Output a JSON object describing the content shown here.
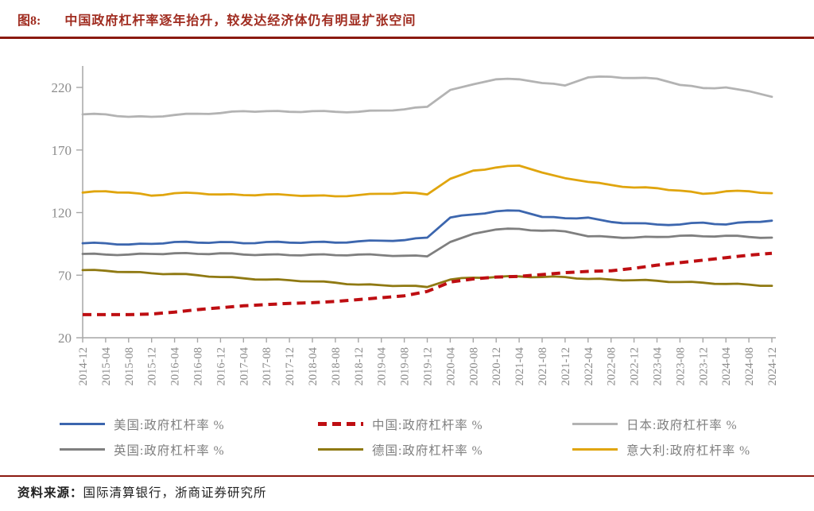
{
  "figure": {
    "tag": "图8:",
    "title": "中国政府杠杆率逐年抬升，较发达经济体仍有明显扩张空间"
  },
  "source": {
    "label": "资料来源：",
    "text": "国际清算银行，浙商证券研究所"
  },
  "colors": {
    "title_red": "#A02C20",
    "rule_red": "#8B1A10",
    "axis_gray": "#A6A6A6",
    "tick_text_gray": "#8C8C8C",
    "legend_text_gray": "#7F7F7F"
  },
  "chart_data": {
    "type": "line",
    "title": "",
    "xlabel": "",
    "ylabel": "",
    "ylim": [
      20,
      220
    ],
    "yticks": [
      20,
      70,
      120,
      170,
      220
    ],
    "grid": false,
    "legend_position": "bottom",
    "x": [
      "2014-12",
      "2015-04",
      "2015-08",
      "2015-12",
      "2016-04",
      "2016-08",
      "2016-12",
      "2017-04",
      "2017-08",
      "2017-12",
      "2018-04",
      "2018-08",
      "2018-12",
      "2019-04",
      "2019-08",
      "2019-12",
      "2020-04",
      "2020-08",
      "2020-12",
      "2021-04",
      "2021-08",
      "2021-12",
      "2022-04",
      "2022-08",
      "2022-12",
      "2023-04",
      "2023-08",
      "2023-12",
      "2024-04",
      "2024-08",
      "2024-12"
    ],
    "series": [
      {
        "key": "us",
        "name": "美国:政府杠杆率 %",
        "color": "#3C66AE",
        "dash": false,
        "values": [
          95.5,
          95.5,
          94.5,
          95,
          96.5,
          96,
          96.5,
          95.5,
          96.5,
          96,
          96.5,
          96,
          97,
          97.5,
          98,
          100,
          116,
          118.5,
          121,
          121.5,
          116.5,
          115.5,
          116,
          112.5,
          111.5,
          110.5,
          110.5,
          112,
          110.5,
          112.5,
          113.5
        ]
      },
      {
        "key": "china",
        "name": "中国:政府杠杆率 %",
        "color": "#BE0E12",
        "dash": true,
        "values": [
          38.5,
          38.5,
          38.5,
          39,
          40.5,
          42.5,
          44,
          45.5,
          46.5,
          47.5,
          48,
          49,
          50.5,
          52,
          53.5,
          57,
          64.5,
          67,
          68.5,
          69,
          70.5,
          72,
          73,
          73.5,
          75.5,
          78,
          80,
          82,
          84,
          86,
          87.5
        ]
      },
      {
        "key": "japan",
        "name": "日本:政府杠杆率 %",
        "color": "#B3B3B3",
        "dash": false,
        "values": [
          198.5,
          198.5,
          196.5,
          196.5,
          198,
          199,
          199.5,
          201,
          201,
          200.5,
          201,
          200.5,
          200.5,
          201.5,
          202.5,
          204.5,
          218,
          222.5,
          226.5,
          226.5,
          223.5,
          221.5,
          228,
          228.5,
          227.5,
          227,
          222,
          219.5,
          220,
          217,
          212.5
        ]
      },
      {
        "key": "uk",
        "name": "英国:政府杠杆率 %",
        "color": "#7F7F7F",
        "dash": false,
        "values": [
          87,
          86.5,
          86.5,
          87,
          87.5,
          87,
          87.5,
          86.5,
          86.5,
          86,
          86.5,
          86,
          86.5,
          86,
          85.5,
          85,
          96.5,
          103,
          106.5,
          107,
          105.5,
          105,
          101,
          100.5,
          100,
          100.5,
          101.5,
          101,
          101.5,
          100.5,
          100
        ]
      },
      {
        "key": "germany",
        "name": "德国:政府杠杆率 %",
        "color": "#8F7912",
        "dash": false,
        "values": [
          74,
          73.5,
          72.5,
          71.5,
          71,
          70,
          68.5,
          67.5,
          66.5,
          66,
          65,
          64,
          62.5,
          62,
          61.5,
          60.5,
          66.5,
          68,
          68.5,
          69,
          68.5,
          68.5,
          67,
          66.5,
          66,
          65.5,
          64.5,
          64,
          63,
          62.5,
          61.5
        ]
      },
      {
        "key": "italy",
        "name": "意大利:政府杠杆率 %",
        "color": "#E0A50E",
        "dash": false,
        "values": [
          136,
          137,
          136,
          133.5,
          135.5,
          135.5,
          134.5,
          134,
          134.5,
          134,
          133.5,
          133,
          134,
          135,
          136,
          134.5,
          147,
          153.5,
          156,
          157.5,
          152,
          147.5,
          144.5,
          142,
          140,
          139.5,
          137.5,
          135,
          137,
          137,
          135.5
        ]
      }
    ]
  }
}
